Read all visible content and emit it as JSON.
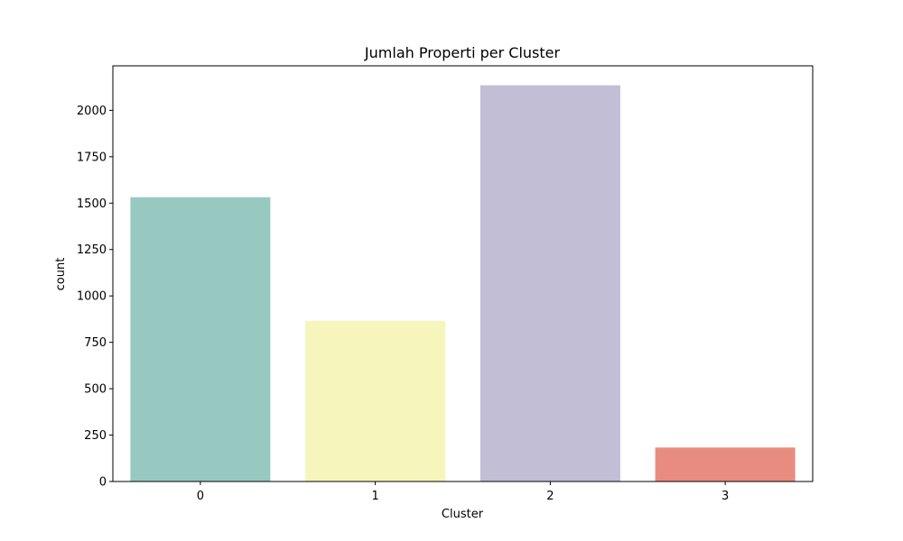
{
  "chart_data": {
    "type": "bar",
    "title": "Jumlah Properti per Cluster",
    "xlabel": "Cluster",
    "ylabel": "count",
    "categories": [
      "0",
      "1",
      "2",
      "3"
    ],
    "values": [
      1532,
      866,
      2135,
      183
    ],
    "ylim": [
      0,
      2240
    ],
    "yticks": [
      0,
      250,
      500,
      750,
      1000,
      1250,
      1500,
      1750,
      2000
    ],
    "grid": false,
    "colors": [
      "#98c9c0",
      "#f6f5bc",
      "#c1bed6",
      "#e98c80"
    ]
  }
}
